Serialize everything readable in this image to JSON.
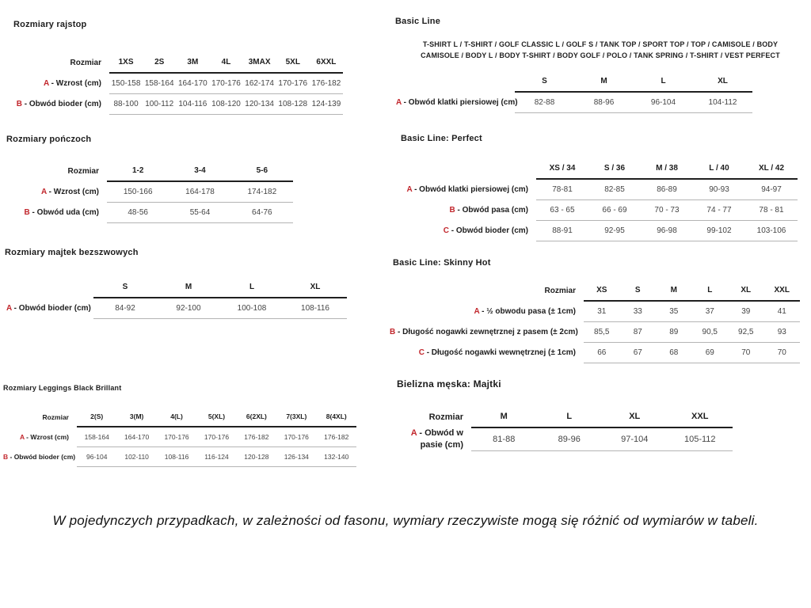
{
  "colors": {
    "accent_red": "#c2272d"
  },
  "left": {
    "rajstopy": {
      "title": "Rozmiary rajstop",
      "table": {
        "corner": "Rozmiar",
        "columns": [
          "1XS",
          "2S",
          "3M",
          "4L",
          "3MAX",
          "5XL",
          "6XXL"
        ],
        "rows": [
          {
            "letter": "A",
            "label": "- Wzrost (cm)",
            "values": [
              "150-158",
              "158-164",
              "164-170",
              "170-176",
              "162-174",
              "170-176",
              "176-182"
            ]
          },
          {
            "letter": "B",
            "label": "- Obwód bioder (cm)",
            "values": [
              "88-100",
              "100-112",
              "104-116",
              "108-120",
              "120-134",
              "108-128",
              "124-139"
            ]
          }
        ]
      }
    },
    "ponczochy": {
      "title": "Rozmiary pończoch",
      "table": {
        "corner": "Rozmiar",
        "columns": [
          "1-2",
          "3-4",
          "5-6"
        ],
        "rows": [
          {
            "letter": "A",
            "label": "- Wzrost (cm)",
            "values": [
              "150-166",
              "164-178",
              "174-182"
            ]
          },
          {
            "letter": "B",
            "label": "- Obwód uda (cm)",
            "values": [
              "48-56",
              "55-64",
              "64-76"
            ]
          }
        ]
      }
    },
    "majtki_bezszwowe": {
      "title": "Rozmiary majtek bezszwowych",
      "table": {
        "corner": "",
        "columns": [
          "S",
          "M",
          "L",
          "XL"
        ],
        "rows": [
          {
            "letter": "A",
            "label": "- Obwód bioder (cm)",
            "values": [
              "84-92",
              "92-100",
              "100-108",
              "108-116"
            ]
          }
        ]
      }
    },
    "leggings": {
      "title": "Rozmiary Leggings Black Brillant",
      "table": {
        "corner": "Rozmiar",
        "columns": [
          "2(S)",
          "3(M)",
          "4(L)",
          "5(XL)",
          "6(2XL)",
          "7(3XL)",
          "8(4XL)"
        ],
        "rows": [
          {
            "letter": "A",
            "label": "- Wzrost (cm)",
            "values": [
              "158-164",
              "164-170",
              "170-176",
              "170-176",
              "176-182",
              "170-176",
              "176-182"
            ]
          },
          {
            "letter": "B",
            "label": "- Obwód bioder (cm)",
            "values": [
              "96-104",
              "102-110",
              "108-116",
              "116-124",
              "120-128",
              "126-134",
              "132-140"
            ]
          }
        ]
      }
    }
  },
  "right": {
    "basic_line": {
      "title": "Basic Line",
      "products_lines": [
        "T-SHIRT L / T-SHIRT / GOLF CLASSIC L / GOLF S / TANK TOP / SPORT TOP / TOP / CAMISOLE / BODY",
        "CAMISOLE / BODY L / BODY T-SHIRT / BODY GOLF / POLO / TANK SPRING / T-SHIRT / VEST PERFECT"
      ],
      "table": {
        "corner": "",
        "columns": [
          "S",
          "M",
          "L",
          "XL"
        ],
        "rows": [
          {
            "letter": "A",
            "label": "- Obwód klatki piersiowej (cm)",
            "values": [
              "82-88",
              "88-96",
              "96-104",
              "104-112"
            ]
          }
        ]
      }
    },
    "perfect": {
      "title": "Basic Line: Perfect",
      "table": {
        "corner": "",
        "columns": [
          "XS / 34",
          "S / 36",
          "M / 38",
          "L / 40",
          "XL / 42"
        ],
        "rows": [
          {
            "letter": "A",
            "label": "- Obwód klatki piersiowej (cm)",
            "values": [
              "78-81",
              "82-85",
              "86-89",
              "90-93",
              "94-97"
            ]
          },
          {
            "letter": "B",
            "label": "- Obwód pasa (cm)",
            "values": [
              "63 - 65",
              "66 - 69",
              "70 - 73",
              "74 - 77",
              "78 - 81"
            ]
          },
          {
            "letter": "C",
            "label": "- Obwód bioder (cm)",
            "values": [
              "88-91",
              "92-95",
              "96-98",
              "99-102",
              "103-106"
            ]
          }
        ]
      }
    },
    "skinny_hot": {
      "title": "Basic Line: Skinny Hot",
      "table": {
        "corner": "Rozmiar",
        "columns": [
          "XS",
          "S",
          "M",
          "L",
          "XL",
          "XXL"
        ],
        "rows": [
          {
            "letter": "A",
            "label": "- ½ obwodu pasa (± 1cm)",
            "values": [
              "31",
              "33",
              "35",
              "37",
              "39",
              "41"
            ]
          },
          {
            "letter": "B",
            "label": "- Długość nogawki zewnętrznej z pasem (± 2cm)",
            "values": [
              "85,5",
              "87",
              "89",
              "90,5",
              "92,5",
              "93"
            ]
          },
          {
            "letter": "C",
            "label": "- Długość nogawki wewnętrznej (± 1cm)",
            "values": [
              "66",
              "67",
              "68",
              "69",
              "70",
              "70"
            ]
          }
        ]
      }
    },
    "majtki_meskie": {
      "title": "Bielizna męska: Majtki",
      "table": {
        "corner": "Rozmiar",
        "columns": [
          "M",
          "L",
          "XL",
          "XXL"
        ],
        "rows": [
          {
            "letter": "A",
            "label": "- Obwód w pasie (cm)",
            "values": [
              "81-88",
              "89-96",
              "97-104",
              "105-112"
            ]
          }
        ]
      }
    }
  },
  "footer": {
    "note": "W pojedynczych przypadkach, w zależności od fasonu, wymiary rzeczywiste mogą się różnić od wymiarów w tabeli."
  }
}
